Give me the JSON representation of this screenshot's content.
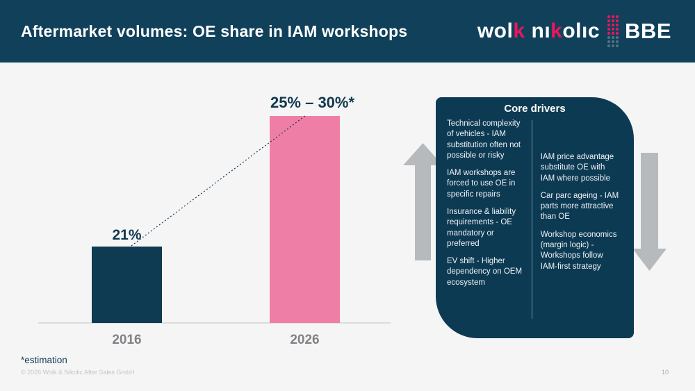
{
  "header": {
    "title": "Aftermarket volumes: OE share in IAM workshops",
    "logo": {
      "word1_pre": "wol",
      "word1_k": "k",
      "word2_pre": "nı",
      "word2_k": "k",
      "word2_post": "olıc",
      "bbe": "BBE"
    }
  },
  "chart": {
    "bar_2016_value_label": "21%",
    "bar_2026_value_label": "25% – 30%*",
    "axis_2016": "2016",
    "axis_2026": "2026"
  },
  "chart_data": {
    "type": "bar",
    "title": "Aftermarket volumes: OE share in IAM workshops",
    "categories": [
      "2016",
      "2026"
    ],
    "series": [
      {
        "name": "OE share in IAM workshops (%)",
        "values": [
          21,
          27.5
        ],
        "value_labels": [
          "21%",
          "25% – 30%*"
        ]
      }
    ],
    "value_range_2026": [
      25,
      30
    ],
    "bar_colors": [
      "#0e3a52",
      "#ef7ea6"
    ],
    "annotations": [
      "*estimation"
    ],
    "trend_line": "dotted connector from top of 2016 bar to top of 2026 bar",
    "grid": false,
    "xlabel": "",
    "ylabel": ""
  },
  "panel": {
    "title": "Core drivers",
    "left_items": [
      "Technical complexity of vehicles - IAM substitution often not possible or risky",
      "IAM workshops are forced to use OE in specific repairs",
      "Insurance & liability requirements - OE mandatory or preferred",
      "EV shift - Higher dependency on OEM ecosystem"
    ],
    "right_items": [
      "IAM price advantage substitute OE with IAM where possible",
      "Car parc ageing - IAM parts more attractive than OE",
      "Workshop economics (margin logic) - Workshops follow IAM-first strategy"
    ]
  },
  "footer": {
    "note": "*estimation",
    "copyright": "© 2026 Wolk & Nikolic After Sales GmbH",
    "page_number": "10"
  },
  "colors": {
    "header_bg": "#10405a",
    "navy_bar": "#0e3a52",
    "panel_bg": "#0d3a53",
    "pink_bar": "#ef7ea6",
    "brand_pink": "#e8175d",
    "arrow_gray": "#b7babd",
    "background": "#f5f5f6"
  }
}
